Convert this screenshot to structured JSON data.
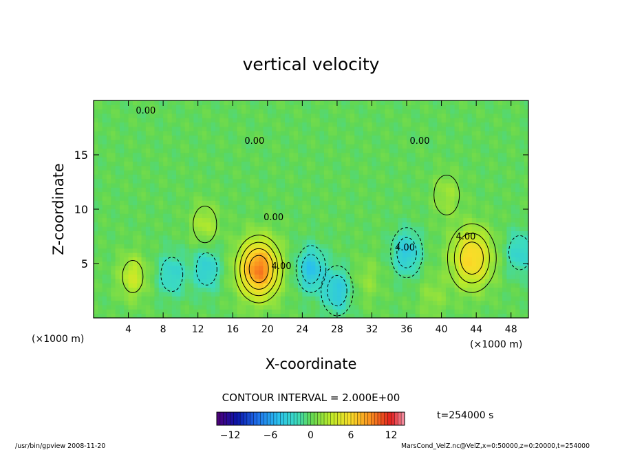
{
  "chart_data": {
    "type": "heatmap",
    "title": "vertical velocity",
    "xlabel": "X-coordinate",
    "ylabel": "Z-coordinate",
    "x_unit_left": "(×1000 m)",
    "x_unit_right": "(×1000 m)",
    "xlim": [
      0,
      50
    ],
    "ylim": [
      0,
      20
    ],
    "x_ticks": [
      4,
      8,
      12,
      16,
      20,
      24,
      28,
      32,
      36,
      40,
      44,
      48
    ],
    "y_ticks": [
      5,
      10,
      15
    ],
    "contour_interval_text": "CONTOUR INTERVAL = 2.000E+00",
    "contour_interval": 2.0,
    "contour_labels": [
      {
        "text": "0.00",
        "x": 6.0,
        "y": 18.8
      },
      {
        "text": "0.00",
        "x": 18.5,
        "y": 16.0
      },
      {
        "text": "0.00",
        "x": 37.5,
        "y": 16.0
      },
      {
        "text": "0.00",
        "x": 20.7,
        "y": 9.0
      },
      {
        "text": "4.00",
        "x": 21.6,
        "y": 4.5
      },
      {
        "text": "4.00",
        "x": 42.8,
        "y": 7.2
      },
      {
        "text": "4.00",
        "x": 35.8,
        "y": 6.2
      }
    ],
    "features": [
      {
        "x": 19.0,
        "z": 4.5,
        "w": 9.5
      },
      {
        "x": 43.5,
        "z": 5.5,
        "w": 6.5
      },
      {
        "x": 4.5,
        "z": 3.8,
        "w": 3.5
      },
      {
        "x": 12.8,
        "z": 8.6,
        "w": 2.5
      },
      {
        "x": 40.6,
        "z": 11.3,
        "w": 2.0
      },
      {
        "x": 31.5,
        "z": 3.5,
        "w": 1.5
      },
      {
        "x": 39.0,
        "z": 2.0,
        "w": 1.5
      },
      {
        "x": 25.0,
        "z": 4.5,
        "w": -4.5
      },
      {
        "x": 28.0,
        "z": 2.5,
        "w": -4.0
      },
      {
        "x": 9.0,
        "z": 4.0,
        "w": -3.0
      },
      {
        "x": 13.0,
        "z": 4.5,
        "w": -3.5
      },
      {
        "x": 36.0,
        "z": 6.0,
        "w": -4.0
      },
      {
        "x": 49.0,
        "z": 6.0,
        "w": -3.0
      }
    ],
    "colorbar": {
      "min": -14,
      "max": 14,
      "ticks": [
        -12,
        -6,
        0,
        6,
        12
      ],
      "tick_labels": [
        "−12",
        "−6",
        "0",
        "6",
        "12"
      ]
    },
    "time_label": "t=254000 s"
  },
  "footer": {
    "left": "/usr/bin/gpview  2008-11-20",
    "right": "MarsCond_VelZ.nc@VelZ,x=0:50000,z=0:20000,t=254000"
  }
}
